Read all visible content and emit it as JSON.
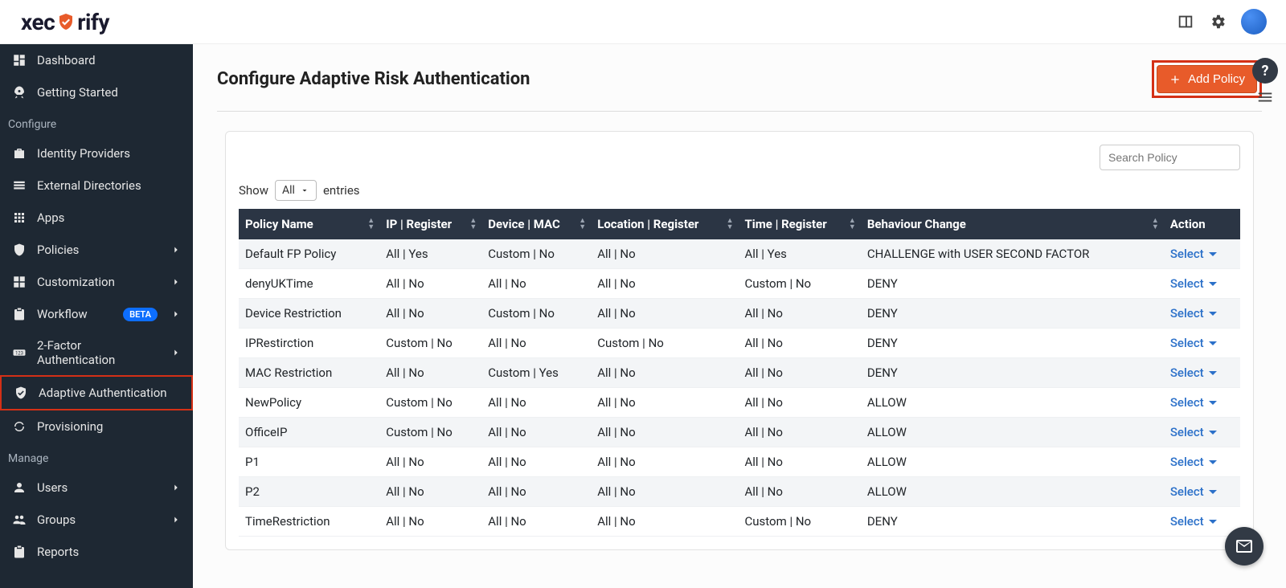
{
  "brand": {
    "name": "xecurify"
  },
  "topbar": {
    "icons": [
      "book-icon",
      "gear-icon",
      "avatar"
    ]
  },
  "sidebar": {
    "sections": [
      {
        "label": null,
        "items": [
          {
            "icon": "dashboard-icon",
            "label": "Dashboard",
            "chevron": false
          },
          {
            "icon": "rocket-icon",
            "label": "Getting Started",
            "chevron": false
          }
        ]
      },
      {
        "label": "Configure",
        "items": [
          {
            "icon": "briefcase-plus-icon",
            "label": "Identity Providers",
            "chevron": false
          },
          {
            "icon": "list-icon",
            "label": "External Directories",
            "chevron": false
          },
          {
            "icon": "grid-icon",
            "label": "Apps",
            "chevron": false
          },
          {
            "icon": "shield-icon",
            "label": "Policies",
            "chevron": true
          },
          {
            "icon": "puzzle-icon",
            "label": "Customization",
            "chevron": true
          },
          {
            "icon": "clipboard-icon",
            "label": "Workflow",
            "chevron": true,
            "badge": "BETA"
          },
          {
            "icon": "onetwothree-icon",
            "label": "2-Factor Authentication",
            "chevron": true
          },
          {
            "icon": "shield-check-icon",
            "label": "Adaptive Authentication",
            "chevron": false,
            "active": true
          },
          {
            "icon": "sync-icon",
            "label": "Provisioning",
            "chevron": false
          }
        ]
      },
      {
        "label": "Manage",
        "items": [
          {
            "icon": "user-icon",
            "label": "Users",
            "chevron": true
          },
          {
            "icon": "group-icon",
            "label": "Groups",
            "chevron": true
          },
          {
            "icon": "clipboard-icon",
            "label": "Reports",
            "chevron": false
          }
        ]
      }
    ]
  },
  "page": {
    "title": "Configure Adaptive Risk Authentication",
    "add_policy_label": "Add Policy"
  },
  "table": {
    "search_placeholder": "Search Policy",
    "show_label": "Show",
    "entries_label": "entries",
    "entries_value": "All",
    "action_label": "Select",
    "columns": [
      "Policy Name",
      "IP | Register",
      "Device | MAC",
      "Location | Register",
      "Time | Register",
      "Behaviour Change",
      "Action"
    ],
    "rows": [
      {
        "name": "Default FP Policy",
        "ip": "All | Yes",
        "device": "Custom | No",
        "location": "All | No",
        "time": "All | Yes",
        "behaviour": "CHALLENGE with USER SECOND FACTOR"
      },
      {
        "name": "denyUKTime",
        "ip": "All | No",
        "device": "All | No",
        "location": "All | No",
        "time": "Custom | No",
        "behaviour": "DENY"
      },
      {
        "name": "Device Restriction",
        "ip": "All | No",
        "device": "Custom | No",
        "location": "All | No",
        "time": "All | No",
        "behaviour": "DENY"
      },
      {
        "name": "IPRestirction",
        "ip": "Custom | No",
        "device": "All | No",
        "location": "Custom | No",
        "time": "All | No",
        "behaviour": "DENY"
      },
      {
        "name": "MAC Restriction",
        "ip": "All | No",
        "device": "Custom | Yes",
        "location": "All | No",
        "time": "All | No",
        "behaviour": "DENY"
      },
      {
        "name": "NewPolicy",
        "ip": "Custom | No",
        "device": "All | No",
        "location": "All | No",
        "time": "All | No",
        "behaviour": "ALLOW"
      },
      {
        "name": "OfficeIP",
        "ip": "Custom | No",
        "device": "All | No",
        "location": "All | No",
        "time": "All | No",
        "behaviour": "ALLOW"
      },
      {
        "name": "P1",
        "ip": "All | No",
        "device": "All | No",
        "location": "All | No",
        "time": "All | No",
        "behaviour": "ALLOW"
      },
      {
        "name": "P2",
        "ip": "All | No",
        "device": "All | No",
        "location": "All | No",
        "time": "All | No",
        "behaviour": "ALLOW"
      },
      {
        "name": "TimeRestriction",
        "ip": "All | No",
        "device": "All | No",
        "location": "All | No",
        "time": "Custom | No",
        "behaviour": "DENY"
      }
    ]
  },
  "colors": {
    "sidebar_bg": "#1e2833",
    "accent_orange": "#e85b2a",
    "highlight_red": "#d43016",
    "table_header_bg": "#2b3544",
    "badge_blue": "#0d6efd",
    "link_blue": "#2b70c9"
  }
}
